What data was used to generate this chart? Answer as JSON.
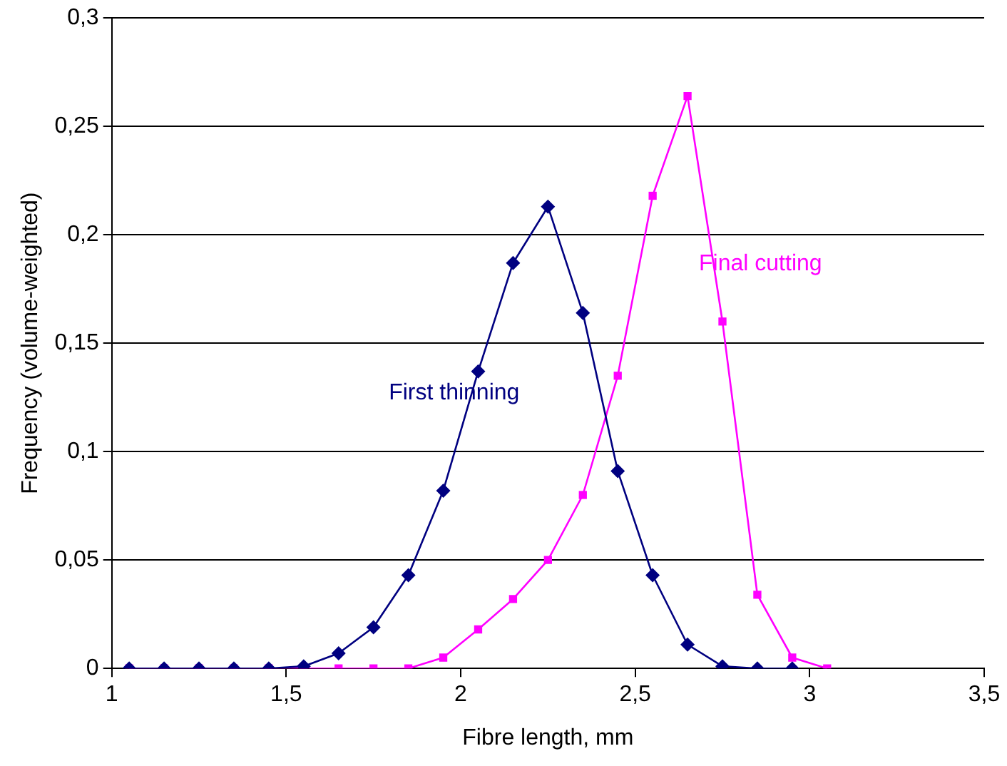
{
  "chart_data": {
    "type": "line",
    "xlabel": "Fibre length, mm",
    "ylabel": "Frequency (volume-weighted)",
    "x": [
      1.05,
      1.15,
      1.25,
      1.35,
      1.45,
      1.55,
      1.65,
      1.75,
      1.85,
      1.95,
      2.05,
      2.15,
      2.25,
      2.35,
      2.45,
      2.55,
      2.65,
      2.75,
      2.85,
      2.95,
      3.05
    ],
    "series": [
      {
        "name": "First thinning",
        "color": "#000080",
        "marker": "diamond",
        "values": [
          0,
          0,
          0,
          0,
          0,
          0.001,
          0.007,
          0.019,
          0.043,
          0.082,
          0.137,
          0.187,
          0.213,
          0.164,
          0.091,
          0.043,
          0.011,
          0.001,
          0,
          0,
          null
        ]
      },
      {
        "name": "Final cutting",
        "color": "#ff00ff",
        "marker": "square",
        "values": [
          0,
          0,
          0,
          0,
          0,
          0,
          0,
          0,
          0,
          0.005,
          0.018,
          0.032,
          0.05,
          0.08,
          0.135,
          0.218,
          0.264,
          0.16,
          0.034,
          0.005,
          0
        ]
      }
    ],
    "xlim": [
      1,
      3.5
    ],
    "xticks": [
      1,
      {
        "value": 1.5,
        "label": "1,5"
      },
      2,
      {
        "value": 2.5,
        "label": "2,5"
      },
      3,
      {
        "value": 3.5,
        "label": "3,5"
      }
    ],
    "ylim": [
      0,
      0.3
    ],
    "yticks": [
      0,
      {
        "value": 0.05,
        "label": "0,05"
      },
      {
        "value": 0.1,
        "label": "0,1"
      },
      {
        "value": 0.15,
        "label": "0,15"
      },
      {
        "value": 0.2,
        "label": "0,2"
      },
      {
        "value": 0.25,
        "label": "0,25"
      },
      {
        "value": 0.3,
        "label": "0,3"
      }
    ],
    "grid": "y",
    "legend": false,
    "line_style": "solid"
  }
}
